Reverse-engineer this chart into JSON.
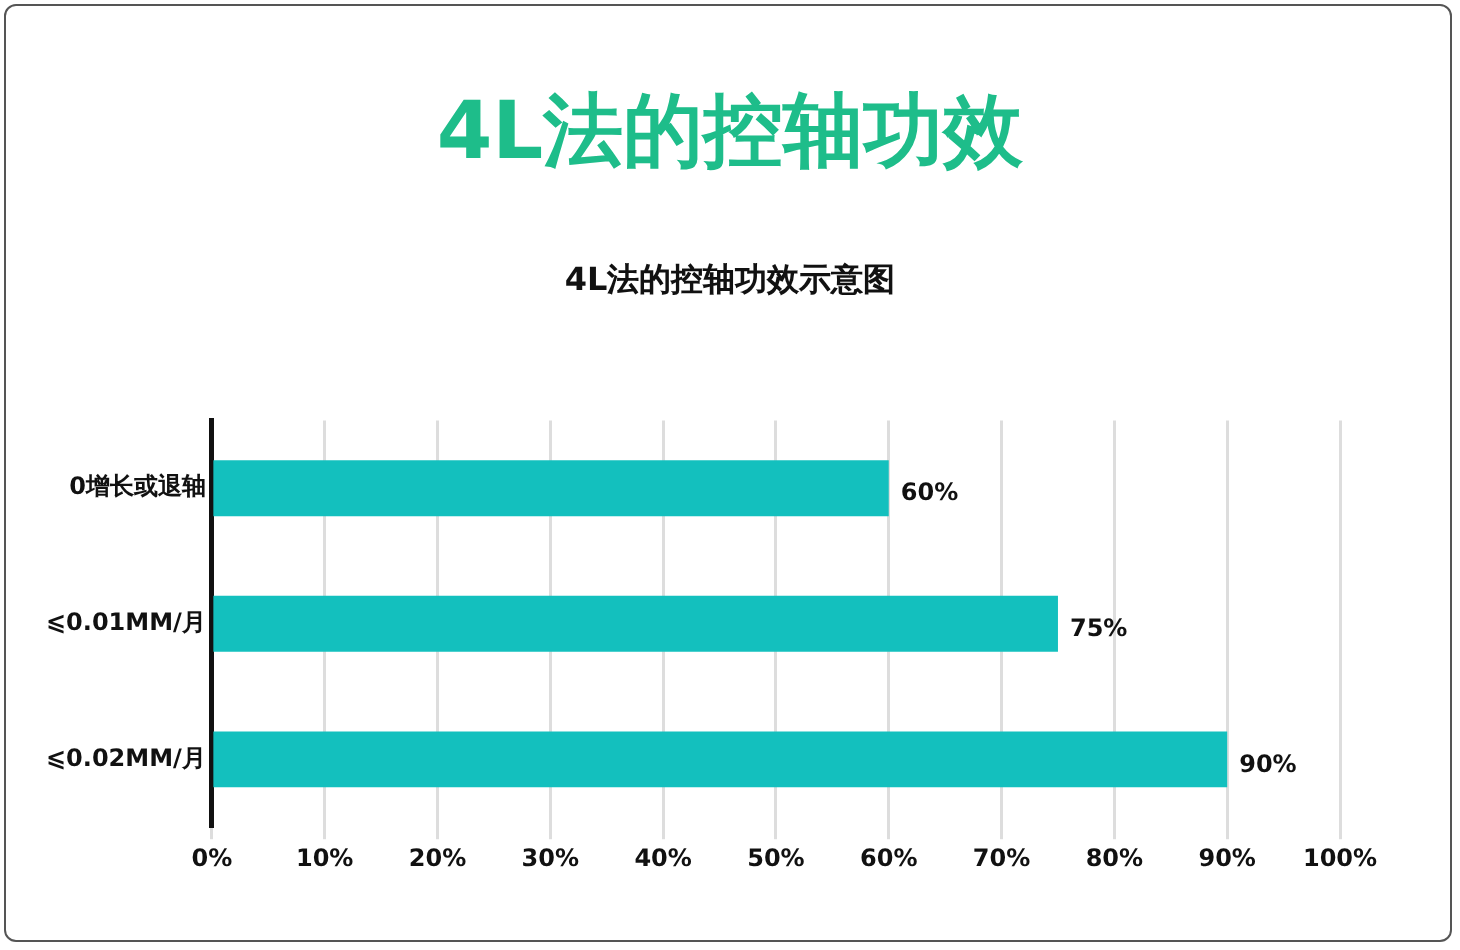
{
  "chart_data": {
    "type": "bar",
    "orientation": "horizontal",
    "title": "4L法的控轴功效",
    "subtitle": "4L法的控轴功效示意图",
    "categories": [
      "0增长或退轴",
      "⩽0.01MM/月",
      "⩽0.02MM/月"
    ],
    "values": [
      60,
      75,
      90
    ],
    "color": "#13c0be",
    "value_labels": [
      "60%",
      "75%",
      "90%"
    ],
    "xlim": [
      0,
      100
    ],
    "xticks": [
      {
        "value": 0,
        "label": "0%"
      },
      {
        "value": 10,
        "label": "10%"
      },
      {
        "value": 20,
        "label": "20%"
      },
      {
        "value": 30,
        "label": "30%"
      },
      {
        "value": 40,
        "label": "40%"
      },
      {
        "value": 50,
        "label": "50%"
      },
      {
        "value": 60,
        "label": "60%"
      },
      {
        "value": 70,
        "label": "70%"
      },
      {
        "value": 80,
        "label": "80%"
      },
      {
        "value": 90,
        "label": "90%"
      },
      {
        "value": 100,
        "label": "100%"
      }
    ],
    "grid": "x",
    "legend": false
  }
}
